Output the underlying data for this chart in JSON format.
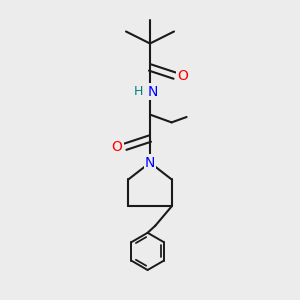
{
  "background_color": "#ececec",
  "bond_color": "#1a1a1a",
  "N_color": "#0000ff",
  "O_color": "#ff0000",
  "H_color": "#008080",
  "figsize": [
    3.0,
    3.0
  ],
  "dpi": 100,
  "xlim": [
    0,
    10
  ],
  "ylim": [
    0,
    10
  ],
  "lw": 1.5,
  "lw_ph": 1.4
}
